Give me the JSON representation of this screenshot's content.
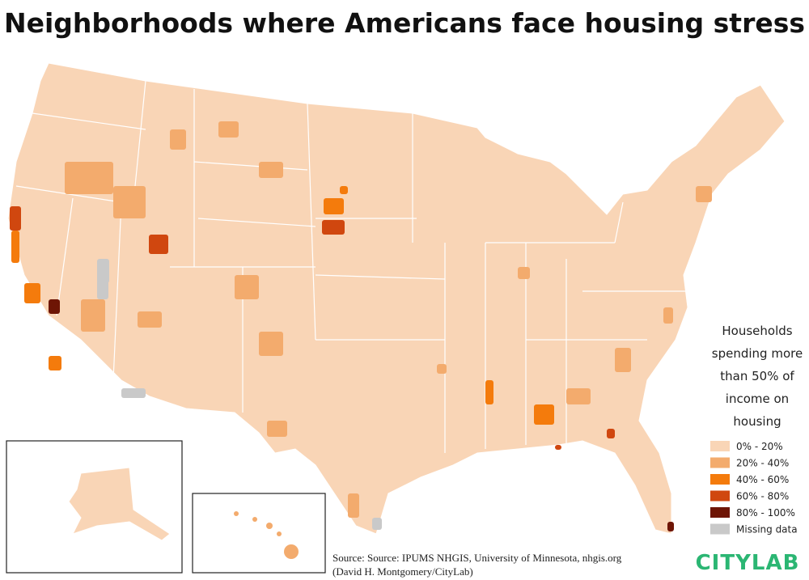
{
  "header": {
    "title": "Neighborhoods where Americans face housing stress"
  },
  "legend": {
    "title_lines": [
      "Households",
      "spending more",
      "than 50% of",
      "income on",
      "housing"
    ],
    "items": [
      {
        "label": "0% - 20%",
        "color": "#f9d5b6"
      },
      {
        "label": "20% - 40%",
        "color": "#f3ab6d"
      },
      {
        "label": "40% - 60%",
        "color": "#f47b0c"
      },
      {
        "label": "60% - 80%",
        "color": "#d0470f"
      },
      {
        "label": "80% - 100%",
        "color": "#6e1505"
      },
      {
        "label": "Missing data",
        "color": "#c9c9c9"
      }
    ]
  },
  "source": {
    "lines": [
      "Source: Source: IPUMS NHGIS, University of Minnesota, nhgis.org",
      "(David H. Montgomery/CityLab)"
    ]
  },
  "logo": "CITYLAB"
}
